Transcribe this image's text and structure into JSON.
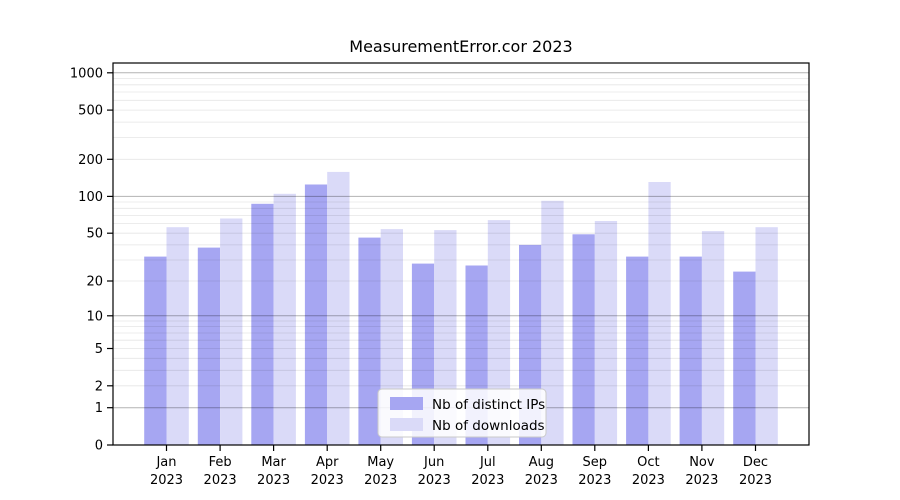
{
  "title": "MeasurementError.cor 2023",
  "colors": {
    "ips": "#a6a6f2",
    "downloads": "#dadaf8",
    "grid_major": "#b5b5b5",
    "grid_minor": "#e8e8e8",
    "axis": "#000000",
    "legend_border": "#c9c9c9",
    "legend_bg_opacity": "0.85"
  },
  "legend": {
    "items": [
      {
        "label": "Nb of distinct IPs",
        "color_key": "ips"
      },
      {
        "label": "Nb of downloads",
        "color_key": "downloads"
      }
    ]
  },
  "chart_data": {
    "type": "bar",
    "title": "MeasurementError.cor 2023",
    "xlabel": "",
    "ylabel": "",
    "yscale": "log1p",
    "ylim": [
      0,
      1200
    ],
    "yticks": [
      0,
      1,
      2,
      5,
      10,
      20,
      50,
      100,
      200,
      500,
      1000
    ],
    "grid": true,
    "grid_minor_steps": [
      2,
      3,
      4,
      5,
      6,
      7,
      8,
      9
    ],
    "legend_position": "inside-bottom-center",
    "categories": [
      "Jan",
      "Feb",
      "Mar",
      "Apr",
      "May",
      "Jun",
      "Jul",
      "Aug",
      "Sep",
      "Oct",
      "Nov",
      "Dec"
    ],
    "xtick_second_line": "2023",
    "series": [
      {
        "name": "Nb of distinct IPs",
        "values": [
          32,
          38,
          87,
          125,
          46,
          28,
          27,
          40,
          49,
          32,
          32,
          24
        ]
      },
      {
        "name": "Nb of downloads",
        "values": [
          56,
          66,
          105,
          158,
          54,
          53,
          64,
          92,
          63,
          131,
          52,
          56
        ]
      }
    ]
  }
}
